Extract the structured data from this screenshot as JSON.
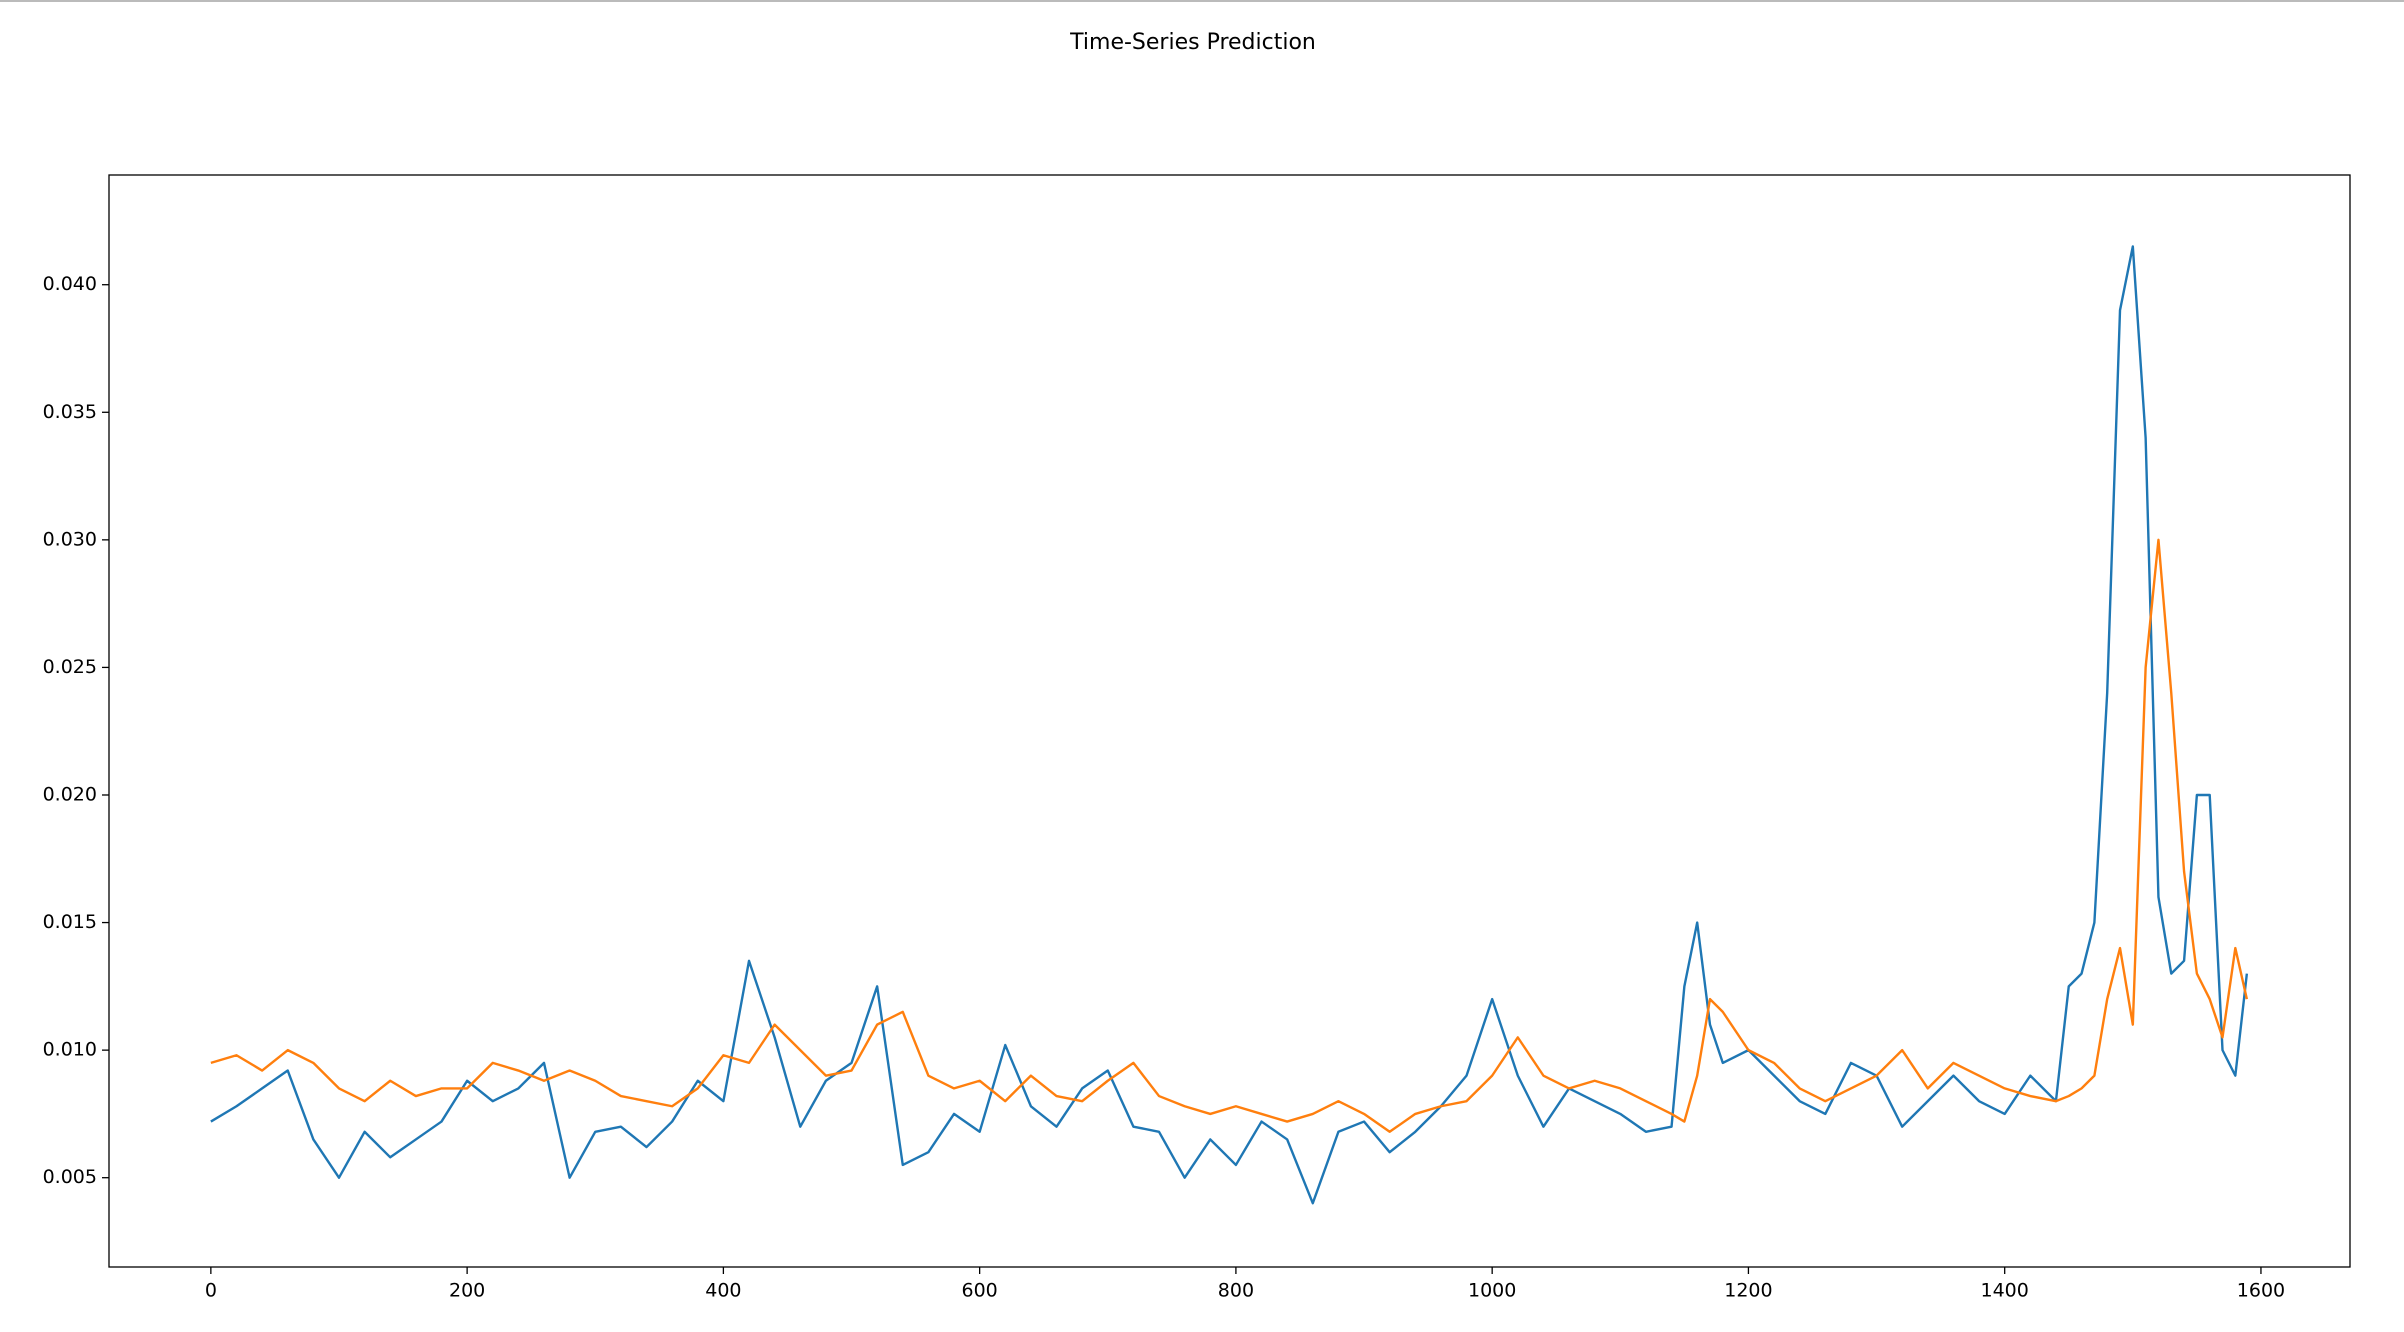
{
  "chart_data": {
    "type": "line",
    "title": "Time-Series Prediction",
    "x": [
      0,
      20,
      40,
      60,
      80,
      100,
      120,
      140,
      160,
      180,
      200,
      220,
      240,
      260,
      280,
      300,
      320,
      340,
      360,
      380,
      400,
      420,
      440,
      460,
      480,
      500,
      520,
      540,
      560,
      580,
      600,
      620,
      640,
      660,
      680,
      700,
      720,
      740,
      760,
      780,
      800,
      820,
      840,
      860,
      880,
      900,
      920,
      940,
      960,
      980,
      1000,
      1020,
      1040,
      1060,
      1080,
      1100,
      1120,
      1140,
      1150,
      1160,
      1170,
      1180,
      1200,
      1220,
      1240,
      1260,
      1280,
      1300,
      1320,
      1340,
      1360,
      1380,
      1400,
      1420,
      1440,
      1450,
      1460,
      1470,
      1480,
      1490,
      1500,
      1510,
      1520,
      1530,
      1540,
      1550,
      1560,
      1570,
      1580,
      1589
    ],
    "series": [
      {
        "color": "#1f77b4",
        "values": [
          0.0072,
          0.0078,
          0.0085,
          0.0092,
          0.0065,
          0.005,
          0.0068,
          0.0058,
          0.0065,
          0.0072,
          0.0088,
          0.008,
          0.0085,
          0.0095,
          0.005,
          0.0068,
          0.007,
          0.0062,
          0.0072,
          0.0088,
          0.008,
          0.0135,
          0.0105,
          0.007,
          0.0088,
          0.0095,
          0.0125,
          0.0055,
          0.006,
          0.0075,
          0.0068,
          0.0102,
          0.0078,
          0.007,
          0.0085,
          0.0092,
          0.007,
          0.0068,
          0.005,
          0.0065,
          0.0055,
          0.0072,
          0.0065,
          0.004,
          0.0068,
          0.0072,
          0.006,
          0.0068,
          0.0078,
          0.009,
          0.012,
          0.009,
          0.007,
          0.0085,
          0.008,
          0.0075,
          0.0068,
          0.007,
          0.0125,
          0.015,
          0.011,
          0.0095,
          0.01,
          0.009,
          0.008,
          0.0075,
          0.0095,
          0.009,
          0.007,
          0.008,
          0.009,
          0.008,
          0.0075,
          0.009,
          0.008,
          0.0125,
          0.013,
          0.015,
          0.024,
          0.039,
          0.0415,
          0.034,
          0.016,
          0.013,
          0.0135,
          0.02,
          0.02,
          0.01,
          0.009,
          0.013
        ]
      },
      {
        "color": "#ff7f0e",
        "values": [
          0.0095,
          0.0098,
          0.0092,
          0.01,
          0.0095,
          0.0085,
          0.008,
          0.0088,
          0.0082,
          0.0085,
          0.0085,
          0.0095,
          0.0092,
          0.0088,
          0.0092,
          0.0088,
          0.0082,
          0.008,
          0.0078,
          0.0085,
          0.0098,
          0.0095,
          0.011,
          0.01,
          0.009,
          0.0092,
          0.011,
          0.0115,
          0.009,
          0.0085,
          0.0088,
          0.008,
          0.009,
          0.0082,
          0.008,
          0.0088,
          0.0095,
          0.0082,
          0.0078,
          0.0075,
          0.0078,
          0.0075,
          0.0072,
          0.0075,
          0.008,
          0.0075,
          0.0068,
          0.0075,
          0.0078,
          0.008,
          0.009,
          0.0105,
          0.009,
          0.0085,
          0.0088,
          0.0085,
          0.008,
          0.0075,
          0.0072,
          0.009,
          0.012,
          0.0115,
          0.01,
          0.0095,
          0.0085,
          0.008,
          0.0085,
          0.009,
          0.01,
          0.0085,
          0.0095,
          0.009,
          0.0085,
          0.0082,
          0.008,
          0.0082,
          0.0085,
          0.009,
          0.012,
          0.014,
          0.011,
          0.025,
          0.03,
          0.024,
          0.017,
          0.013,
          0.012,
          0.0105,
          0.014,
          0.012
        ]
      }
    ],
    "xlim": [
      -79.5,
      1669.5
    ],
    "ylim": [
      0.0015,
      0.0443
    ],
    "xticks": [
      0,
      200,
      400,
      600,
      800,
      1000,
      1200,
      1400,
      1600
    ],
    "yticks": [
      0.005,
      {
        "value": 0.01,
        "label": "0.010"
      },
      0.015,
      {
        "value": 0.02,
        "label": "0.020"
      },
      0.025,
      {
        "value": 0.03,
        "label": "0.030"
      },
      0.035,
      {
        "value": 0.04,
        "label": "0.040"
      }
    ]
  }
}
